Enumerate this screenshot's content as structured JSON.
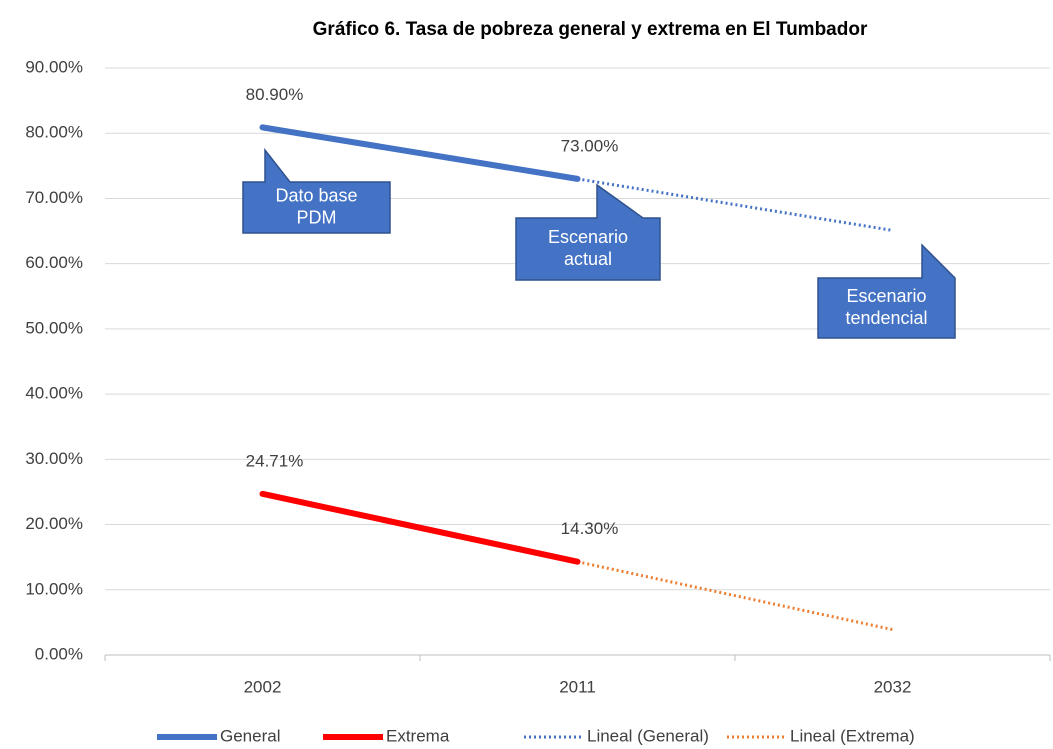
{
  "chart_data": {
    "type": "line",
    "title": "Gráfico 6. Tasa de pobreza general y extrema en El Tumbador",
    "categories": [
      "2002",
      "2011",
      "2032"
    ],
    "series": [
      {
        "name": "General",
        "color": "#4472c4",
        "style": "solid",
        "values": [
          80.9,
          73.0,
          null
        ],
        "value_labels": [
          "80.90%",
          "73.00%",
          null
        ]
      },
      {
        "name": "Extrema",
        "color": "#ff0000",
        "style": "solid",
        "values": [
          24.71,
          14.3,
          null
        ],
        "value_labels": [
          "24.71%",
          "14.30%",
          null
        ]
      },
      {
        "name": "Lineal (General)",
        "color": "#4472c4",
        "style": "dotted",
        "values": [
          null,
          73.0,
          65.1
        ]
      },
      {
        "name": "Lineal (Extrema)",
        "color": "#ed7d31",
        "style": "dotted",
        "values": [
          null,
          14.3,
          3.9
        ]
      }
    ],
    "annotations": [
      {
        "lines": [
          "Dato base",
          "PDM"
        ]
      },
      {
        "lines": [
          "Escenario",
          "actual"
        ]
      },
      {
        "lines": [
          "Escenario",
          "tendencial"
        ]
      }
    ],
    "ylim": [
      0,
      90
    ],
    "yticks": [
      {
        "value": 0,
        "label": "0.00%"
      },
      {
        "value": 10,
        "label": "10.00%"
      },
      {
        "value": 20,
        "label": "20.00%"
      },
      {
        "value": 30,
        "label": "30.00%"
      },
      {
        "value": 40,
        "label": "40.00%"
      },
      {
        "value": 50,
        "label": "50.00%"
      },
      {
        "value": 60,
        "label": "60.00%"
      },
      {
        "value": 70,
        "label": "70.00%"
      },
      {
        "value": 80,
        "label": "80.00%"
      },
      {
        "value": 90,
        "label": "90.00%"
      }
    ],
    "grid": true,
    "legend": "bottom"
  }
}
